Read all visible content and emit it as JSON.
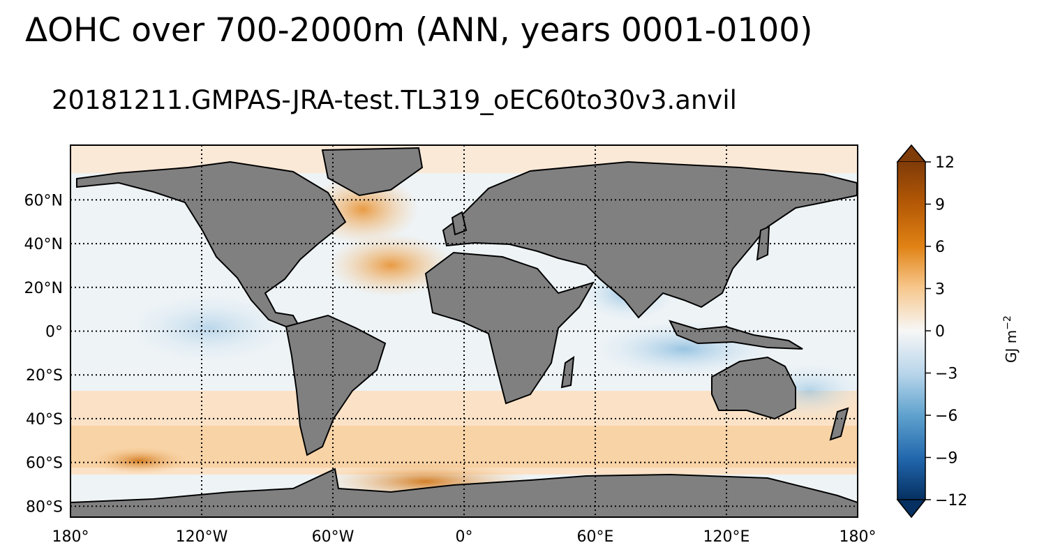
{
  "title": "ΔOHC over 700-2000m (ANN, years 0001-0100)",
  "subtitle": "20181211.GMPAS-JRA-test.TL319_oEC60to30v3.anvil",
  "map": {
    "projection": "PlateCarree",
    "lon_range": [
      -180,
      180
    ],
    "lat_range": [
      -85,
      85
    ],
    "land_color": "#808080",
    "gridlines": "dotted",
    "lon_ticks": [
      {
        "value": -180,
        "label": "180°"
      },
      {
        "value": -120,
        "label": "120°W"
      },
      {
        "value": -60,
        "label": "60°W"
      },
      {
        "value": 0,
        "label": "0°"
      },
      {
        "value": 60,
        "label": "60°E"
      },
      {
        "value": 120,
        "label": "120°E"
      },
      {
        "value": 180,
        "label": "180°"
      }
    ],
    "lat_ticks": [
      {
        "value": 60,
        "label": "60°N"
      },
      {
        "value": 40,
        "label": "40°N"
      },
      {
        "value": 20,
        "label": "20°N"
      },
      {
        "value": 0,
        "label": "0°"
      },
      {
        "value": -20,
        "label": "20°S"
      },
      {
        "value": -40,
        "label": "40°S"
      },
      {
        "value": -60,
        "label": "60°S"
      },
      {
        "value": -80,
        "label": "80°S"
      }
    ]
  },
  "colorbar": {
    "label": "GJ m",
    "label_exponent": "−2",
    "range": [
      -12,
      12
    ],
    "extend": "both",
    "ticks": [
      {
        "value": 12,
        "label": "12"
      },
      {
        "value": 9,
        "label": "9"
      },
      {
        "value": 6,
        "label": "6"
      },
      {
        "value": 3,
        "label": "3"
      },
      {
        "value": 0,
        "label": "0"
      },
      {
        "value": -3,
        "label": "−3"
      },
      {
        "value": -6,
        "label": "−6"
      },
      {
        "value": -9,
        "label": "−9"
      },
      {
        "value": -12,
        "label": "−12"
      }
    ],
    "colors": {
      "max": "#7f3b08",
      "mid": "#f7f7f7",
      "min": "#053061"
    }
  }
}
